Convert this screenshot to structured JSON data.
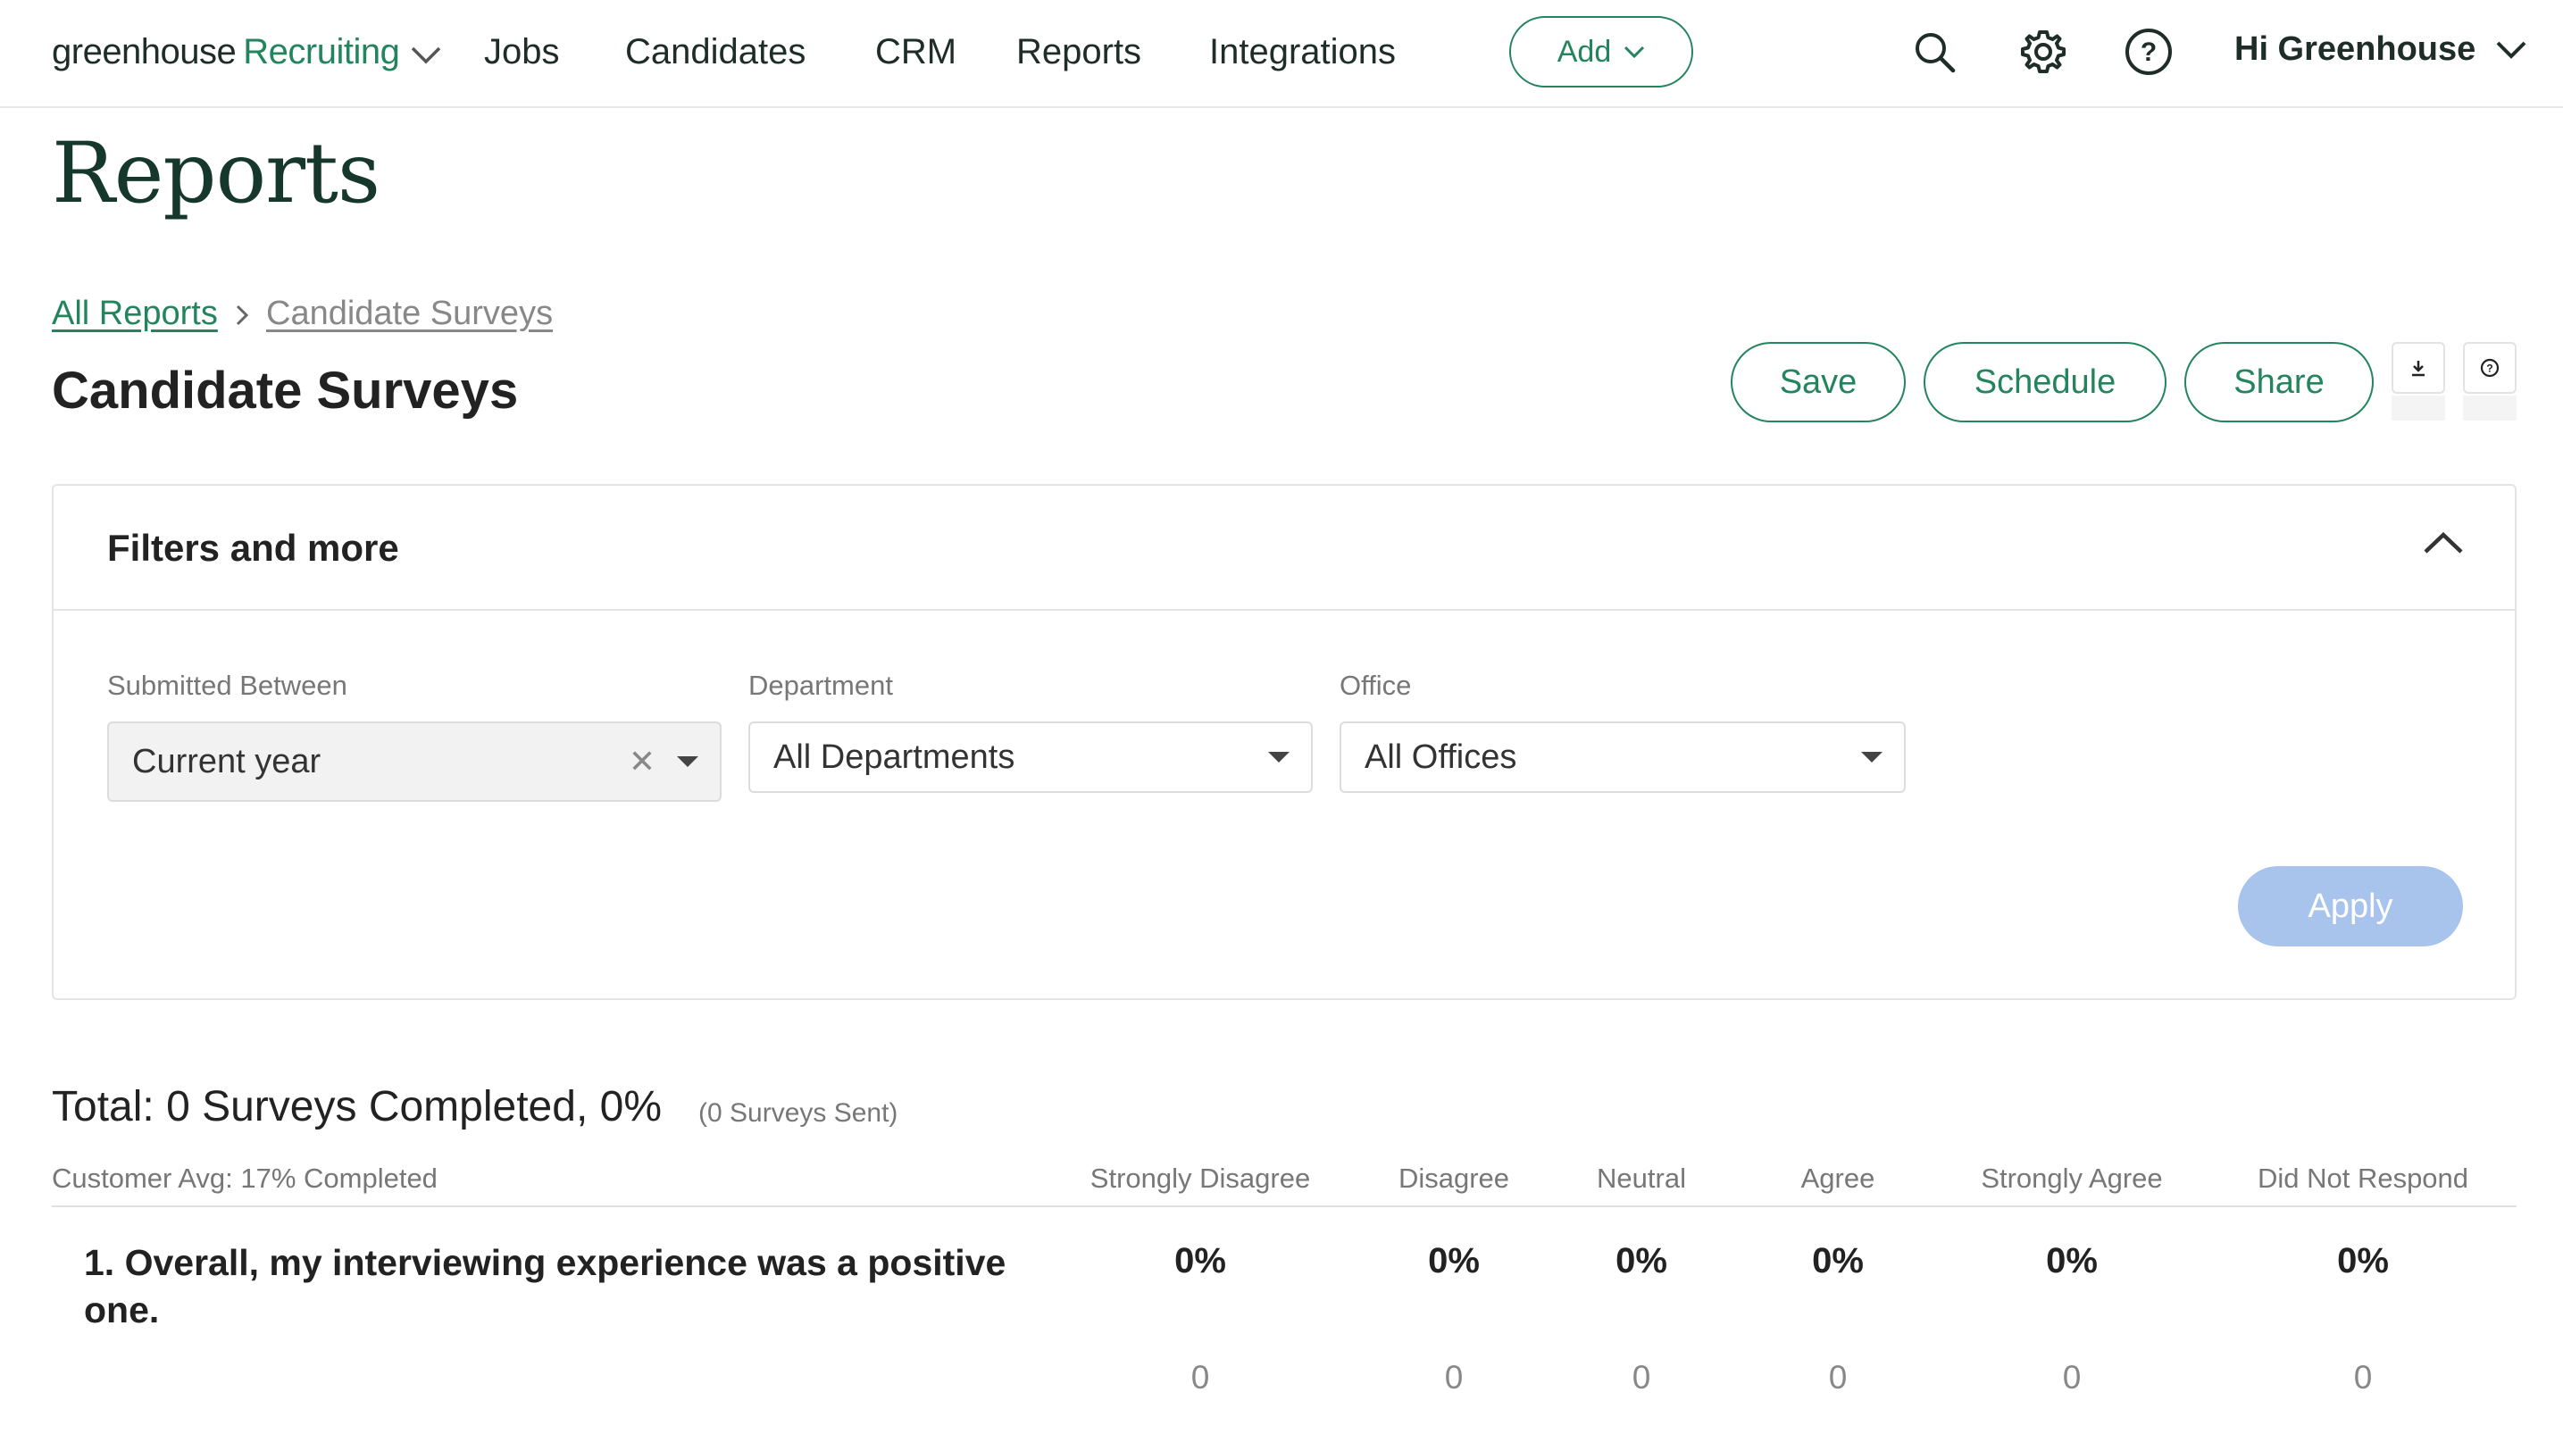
{
  "nav": {
    "logo_text": "greenhouse",
    "logo_accent": "Recruiting",
    "links": [
      "Jobs",
      "Candidates",
      "CRM",
      "Reports",
      "Integrations"
    ],
    "add_label": "Add",
    "user_greeting": "Hi Greenhouse"
  },
  "page": {
    "title": "Reports",
    "breadcrumb": {
      "all": "All Reports",
      "current": "Candidate Surveys"
    },
    "report_title": "Candidate Surveys",
    "actions": {
      "save": "Save",
      "schedule": "Schedule",
      "share": "Share"
    }
  },
  "filters": {
    "title": "Filters and more",
    "submitted_label": "Submitted Between",
    "submitted_value": "Current year",
    "department_label": "Department",
    "department_value": "All Departments",
    "office_label": "Office",
    "office_value": "All Offices",
    "apply_label": "Apply"
  },
  "summary": {
    "total": "Total: 0 Surveys Completed, 0%",
    "sent": "(0 Surveys Sent)"
  },
  "table": {
    "headers": [
      "Customer Avg: 17% Completed",
      "Strongly Disagree",
      "Disagree",
      "Neutral",
      "Agree",
      "Strongly Agree",
      "Did Not Respond"
    ],
    "rows": [
      {
        "question": "1. Overall, my interviewing experience was a positive one.",
        "percents": [
          "0%",
          "0%",
          "0%",
          "0%",
          "0%",
          "0%"
        ],
        "counts": [
          "0",
          "0",
          "0",
          "0",
          "0",
          "0"
        ]
      }
    ]
  },
  "colors": {
    "brand_green": "#23845d",
    "apply_disabled": "#a9c4ec",
    "title_green": "#15372c"
  },
  "icons": [
    "chevron-down-icon",
    "search-icon",
    "gear-icon",
    "help-icon",
    "download-icon",
    "info-icon",
    "chevron-up-icon",
    "chevron-right-icon",
    "close-icon",
    "caret-down-icon"
  ]
}
